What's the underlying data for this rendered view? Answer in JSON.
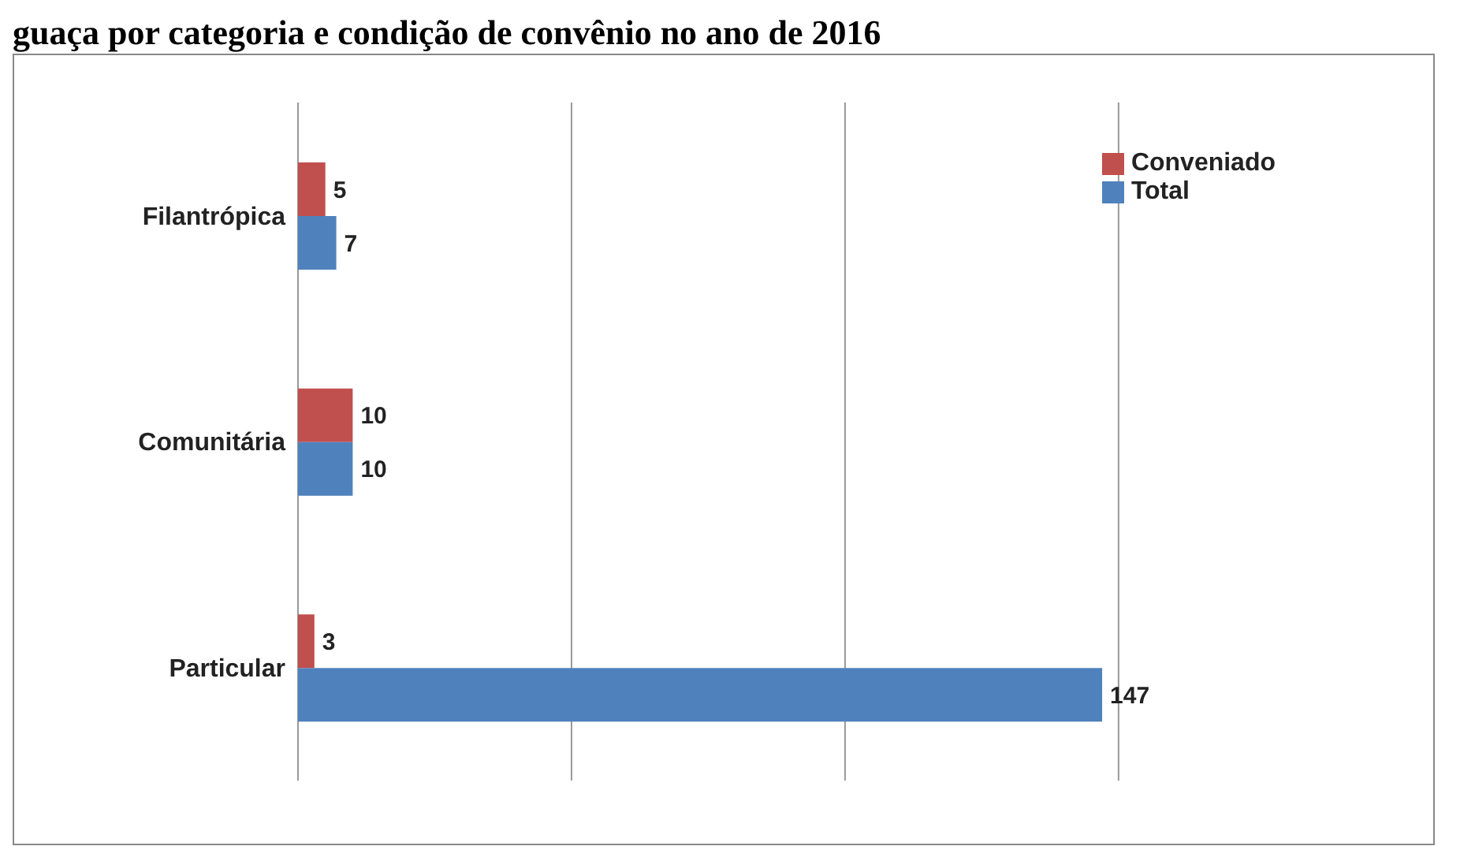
{
  "chart_data": {
    "type": "bar",
    "orientation": "horizontal",
    "title": "guaça por categoria e condição de convênio no ano de 2016",
    "categories": [
      "Filantrópica",
      "Comunitária",
      "Particular"
    ],
    "series": [
      {
        "name": "Conveniado",
        "color": "#c0504d",
        "values": [
          5,
          10,
          3
        ]
      },
      {
        "name": "Total",
        "color": "#4f81bd",
        "values": [
          7,
          10,
          147
        ]
      }
    ],
    "xlim": [
      0,
      150
    ],
    "xticks": [
      {
        "value": 0,
        "label": null
      },
      {
        "value": 50,
        "label": null
      },
      {
        "value": 100,
        "label": null
      },
      {
        "value": 150,
        "label": null
      }
    ],
    "tick_labels": "y",
    "grid": "x",
    "legend": "top right",
    "data_labels": true
  }
}
